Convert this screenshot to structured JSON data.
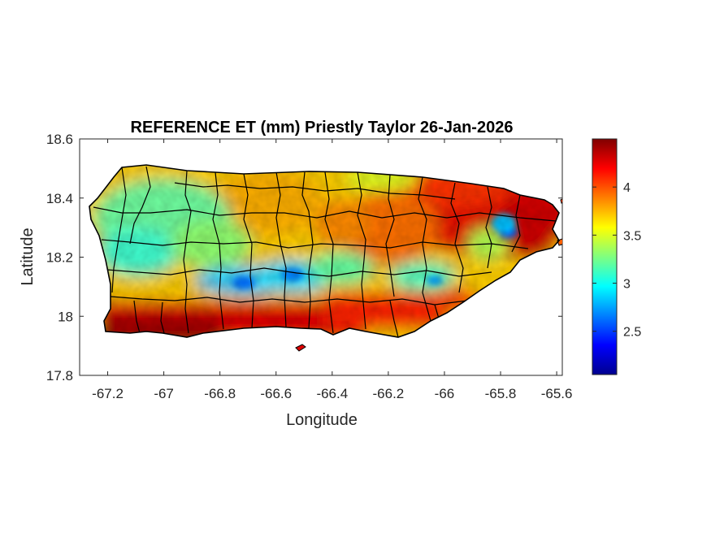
{
  "chart_data": {
    "type": "heatmap",
    "title": "REFERENCE ET (mm) Priestly Taylor 26-Jan-2026",
    "xlabel": "Longitude",
    "ylabel": "Latitude",
    "xlim": [
      -67.3,
      -65.58
    ],
    "ylim": [
      17.8,
      18.6
    ],
    "xticks": [
      -67.2,
      -67,
      -66.8,
      -66.6,
      -66.4,
      -66.2,
      -66,
      -65.8,
      -65.6
    ],
    "xtick_labels": [
      "-67.2",
      "-67",
      "-66.8",
      "-66.6",
      "-66.4",
      "-66.2",
      "-66",
      "-65.8",
      "-65.6"
    ],
    "yticks": [
      18.6,
      18.4,
      18.2,
      18,
      17.8
    ],
    "ytick_labels": [
      "18.6",
      "18.4",
      "18.2",
      "18",
      "17.8"
    ],
    "colorbar": {
      "colormap": "jet",
      "range": [
        2.05,
        4.5
      ],
      "ticks": [
        2.5,
        3,
        3.5,
        4
      ],
      "tick_labels": [
        "2.5",
        "3",
        "3.5",
        "4"
      ]
    },
    "region": "Puerto Rico municipalities",
    "pattern": "High ET (above 4 mm) along the south coast and northeast; lowest values (near 2.1 to 2.8 mm) over the central mountains and near -65.78, 18.27"
  }
}
